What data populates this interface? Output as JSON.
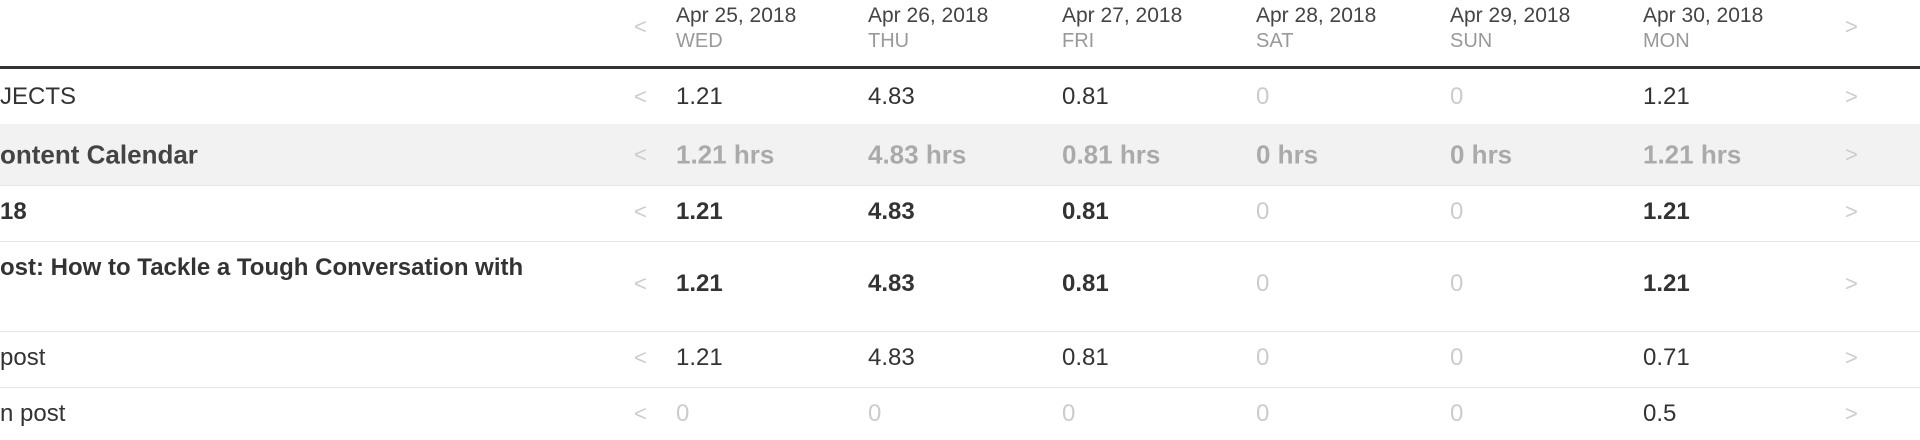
{
  "nav": {
    "prev": "<",
    "next": ">"
  },
  "columns": [
    {
      "date": "Apr 25, 2018",
      "day": "WED"
    },
    {
      "date": "Apr 26, 2018",
      "day": "THU"
    },
    {
      "date": "Apr 27, 2018",
      "day": "FRI"
    },
    {
      "date": "Apr 28, 2018",
      "day": "SAT"
    },
    {
      "date": "Apr 29, 2018",
      "day": "SUN"
    },
    {
      "date": "Apr 30, 2018",
      "day": "MON"
    }
  ],
  "rows": [
    {
      "label": "JECTS",
      "cells": [
        "1.21",
        "4.83",
        "0.81",
        "0",
        "0",
        "1.21"
      ]
    },
    {
      "label": "ontent Calendar",
      "cells": [
        "1.21 hrs",
        "4.83 hrs",
        "0.81 hrs",
        "0 hrs",
        "0 hrs",
        "1.21 hrs"
      ]
    },
    {
      "label": "18",
      "cells": [
        "1.21",
        "4.83",
        "0.81",
        "0",
        "0",
        "1.21"
      ]
    },
    {
      "label": "ost: How to Tackle a Tough Conversation with",
      "cells": [
        "1.21",
        "4.83",
        "0.81",
        "0",
        "0",
        "1.21"
      ]
    },
    {
      "label": "post",
      "cells": [
        "1.21",
        "4.83",
        "0.81",
        "0",
        "0",
        "0.71"
      ]
    },
    {
      "label": "n post",
      "cells": [
        "0",
        "0",
        "0",
        "0",
        "0",
        "0.5"
      ]
    }
  ]
}
